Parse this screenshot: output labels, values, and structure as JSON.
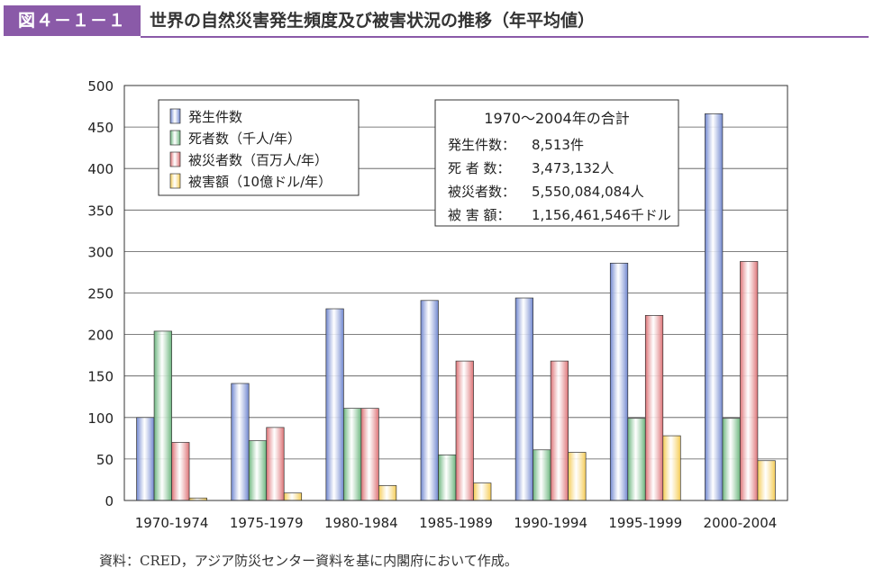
{
  "header": {
    "figure_label": "図４－１－１",
    "title": "世界の自然災害発生頻度及び被害状況の推移（年平均値）"
  },
  "source_note": "資料：CRED，アジア防災センター資料を基に内閣府において作成。",
  "summary_box": {
    "title": "1970～2004年の合計",
    "rows": [
      {
        "label": "発生件数：",
        "value": "8,513件"
      },
      {
        "label": "死 者 数：",
        "value": "3,473,132人"
      },
      {
        "label": "被災者数：",
        "value": "5,550,084,084人"
      },
      {
        "label": "被 害 額：",
        "value": "1,156,461,546千ドル"
      }
    ]
  },
  "colors": {
    "series": [
      "#6f86cf",
      "#6bb57d",
      "#dd7275",
      "#f5cc55"
    ],
    "grid": "#555555",
    "badge": "#8a5aa8"
  },
  "chart_data": {
    "type": "bar",
    "title": "",
    "xlabel": "",
    "ylabel": "",
    "ylim": [
      0,
      500
    ],
    "yticks": [
      0,
      50,
      100,
      150,
      200,
      250,
      300,
      350,
      400,
      450,
      500
    ],
    "grid": true,
    "legend_position": "top-left",
    "categories": [
      "1970-1974",
      "1975-1979",
      "1980-1984",
      "1985-1989",
      "1990-1994",
      "1995-1999",
      "2000-2004"
    ],
    "series": [
      {
        "name": "発生件数",
        "values": [
          100,
          141,
          231,
          241,
          244,
          286,
          466
        ]
      },
      {
        "name": "死者数（千人/年）",
        "values": [
          204,
          72,
          111,
          55,
          61,
          99,
          99
        ]
      },
      {
        "name": "被災者数（百万人/年）",
        "values": [
          70,
          88,
          111,
          168,
          168,
          223,
          288
        ]
      },
      {
        "name": "被害額（10億ドル/年）",
        "values": [
          3,
          9,
          18,
          21,
          58,
          78,
          48
        ]
      }
    ]
  }
}
